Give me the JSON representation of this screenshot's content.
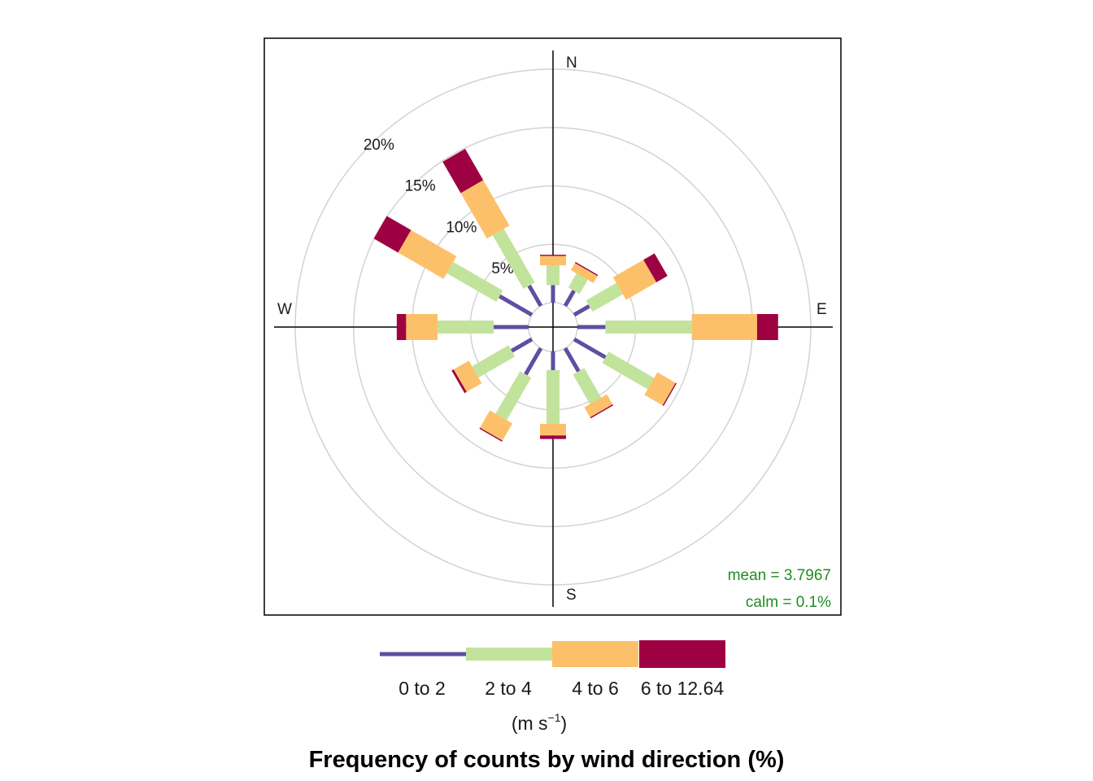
{
  "chart_data": {
    "type": "wind-rose",
    "title": "Frequency of counts by wind direction (%)",
    "units": {
      "prefix": "(m s",
      "exponent": "−1",
      "suffix": ")"
    },
    "direction_labels": {
      "N": "N",
      "S": "S",
      "W": "W",
      "E": "E"
    },
    "rings": [
      {
        "value": 5,
        "label": "5%"
      },
      {
        "value": 10,
        "label": "10%"
      },
      {
        "value": 15,
        "label": "15%"
      },
      {
        "value": 20,
        "label": "20%"
      }
    ],
    "r_max": 23,
    "angle_width_deg": 30,
    "speed_bins": [
      {
        "name": "0 to 2",
        "color": "#5e4fa2"
      },
      {
        "name": "2 to 4",
        "color": "#c2e39c"
      },
      {
        "name": "4 to 6",
        "color": "#fdc06a"
      },
      {
        "name": "6 to 12.64",
        "color": "#9e0142"
      }
    ],
    "directions": [
      {
        "angle": 0,
        "cumulative": [
          1.5,
          3.2,
          4.0,
          4.1
        ]
      },
      {
        "angle": 30,
        "cumulative": [
          1.5,
          2.9,
          3.6,
          3.7
        ]
      },
      {
        "angle": 60,
        "cumulative": [
          1.5,
          4.5,
          7.5,
          8.6
        ]
      },
      {
        "angle": 90,
        "cumulative": [
          2.4,
          9.8,
          15.4,
          17.2
        ]
      },
      {
        "angle": 120,
        "cumulative": [
          3.1,
          7.6,
          9.4,
          9.5
        ]
      },
      {
        "angle": 150,
        "cumulative": [
          2.3,
          5.2,
          6.2,
          6.3
        ]
      },
      {
        "angle": 180,
        "cumulative": [
          1.6,
          6.2,
          7.2,
          7.5
        ]
      },
      {
        "angle": 210,
        "cumulative": [
          2.6,
          6.8,
          8.5,
          8.6
        ]
      },
      {
        "angle": 240,
        "cumulative": [
          2.0,
          5.6,
          7.1,
          7.3
        ]
      },
      {
        "angle": 270,
        "cumulative": [
          3.0,
          7.8,
          10.5,
          11.3
        ]
      },
      {
        "angle": 300,
        "cumulative": [
          3.2,
          8.1,
          12.6,
          15.0
        ]
      },
      {
        "angle": 330,
        "cumulative": [
          2.0,
          7.3,
          11.8,
          14.9
        ]
      }
    ],
    "stats": {
      "mean": "mean = 3.7967",
      "calm": "calm = 0.1%"
    },
    "colors": {
      "stats_text": "#228b22",
      "grid": "#d3d3d3"
    }
  }
}
